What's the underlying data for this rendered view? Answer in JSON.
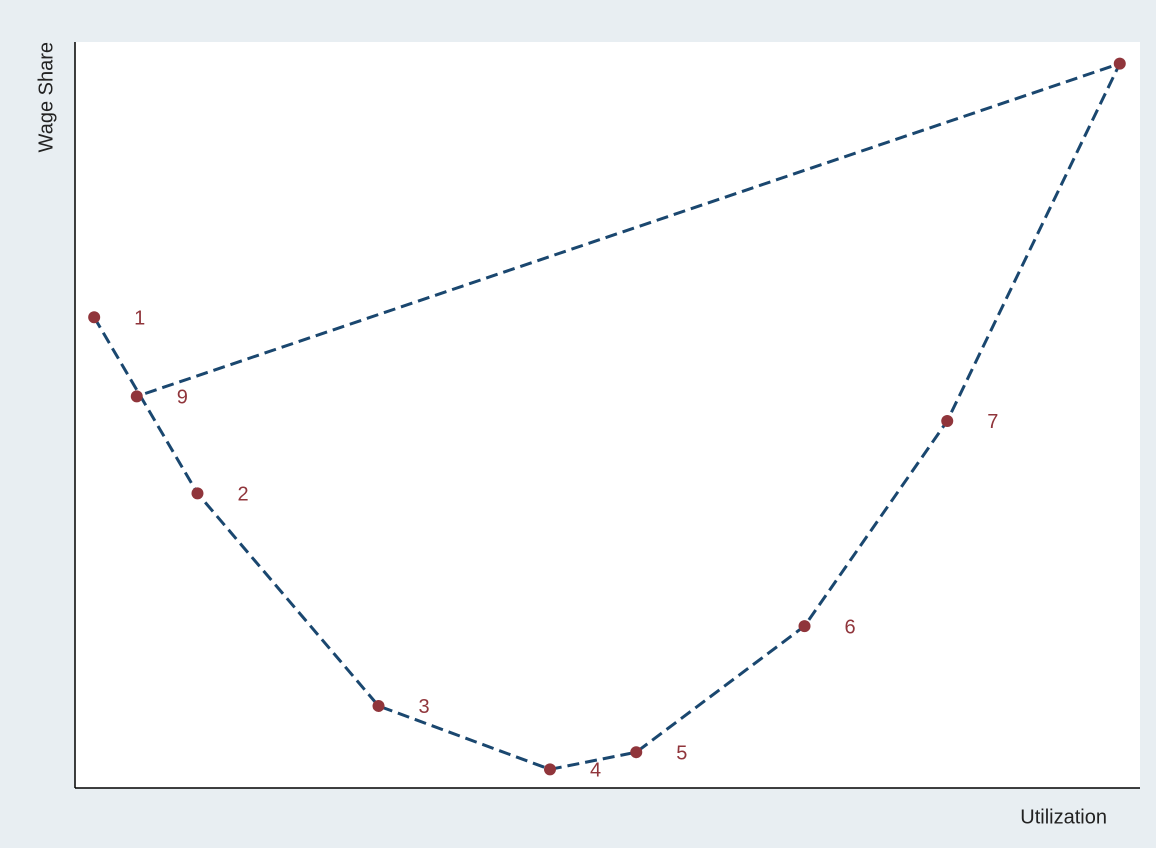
{
  "chart_data": {
    "type": "line",
    "x_label": "Utilization",
    "y_label": "Wage Share",
    "x": [
      1.8,
      11.5,
      28.5,
      44.6,
      52.7,
      68.5,
      81.9,
      98.1,
      5.8
    ],
    "series": [
      {
        "color": "#1a476f",
        "marker_color": "#90353b",
        "values": [
          63.1,
          39.5,
          11.0,
          2.5,
          4.8,
          21.7,
          49.2,
          97.1,
          52.5
        ],
        "point_labels": [
          "1",
          "2",
          "3",
          "4",
          "5",
          "6",
          "7",
          null,
          "9"
        ]
      }
    ],
    "xlim": [
      0,
      100
    ],
    "ylim": [
      0,
      100
    ],
    "line_style": "dashed"
  }
}
